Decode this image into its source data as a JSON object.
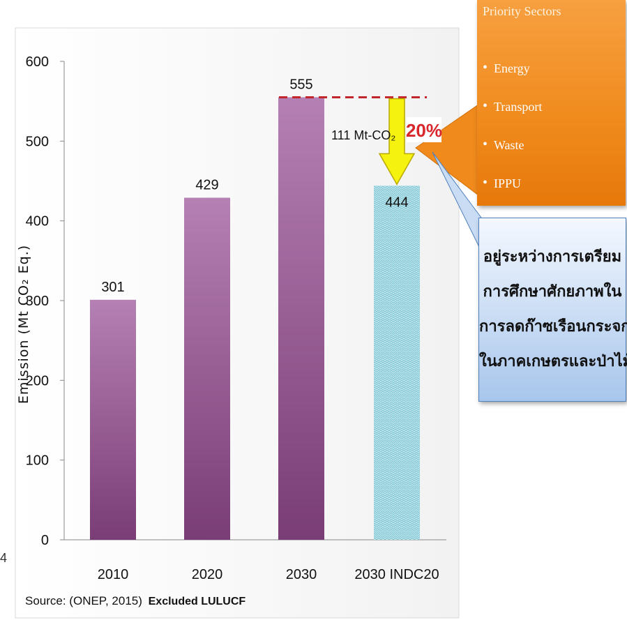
{
  "chart_data": {
    "type": "bar",
    "ylabel": "Emission (Mt CO₂ Eq.)",
    "ylim": [
      0,
      600
    ],
    "yticks": [
      0,
      100,
      200,
      300,
      400,
      500,
      600
    ],
    "categories": [
      "2010",
      "2020",
      "2030",
      "2030 INDC20"
    ],
    "values": [
      301,
      429,
      555,
      444
    ],
    "bar_labels": [
      "301",
      "429",
      "555",
      "444"
    ],
    "colors": {
      "bars": "#8f4f8a",
      "indc": "#9fd6e0",
      "ref_line": "#c0262b",
      "arrow": "#f5f20f"
    },
    "reduction_label": "111 Mt-CO₂",
    "reduction_pct": "20%"
  },
  "priority_box": {
    "title": "Priority Sectors",
    "items": [
      "Energy",
      "Transport",
      "Waste",
      "IPPU"
    ]
  },
  "note_box": {
    "lines": [
      "อยู่ระหว่างการเตรียม",
      "การศึกษาศักยภาพใน",
      "การลดก๊าซเรือนกระจก",
      "ในภาคเกษตรและป่าไม้"
    ]
  },
  "source": {
    "text": "Source: (ONEP, 2015)",
    "note": "Excluded LULUCF"
  },
  "page_number": "4"
}
